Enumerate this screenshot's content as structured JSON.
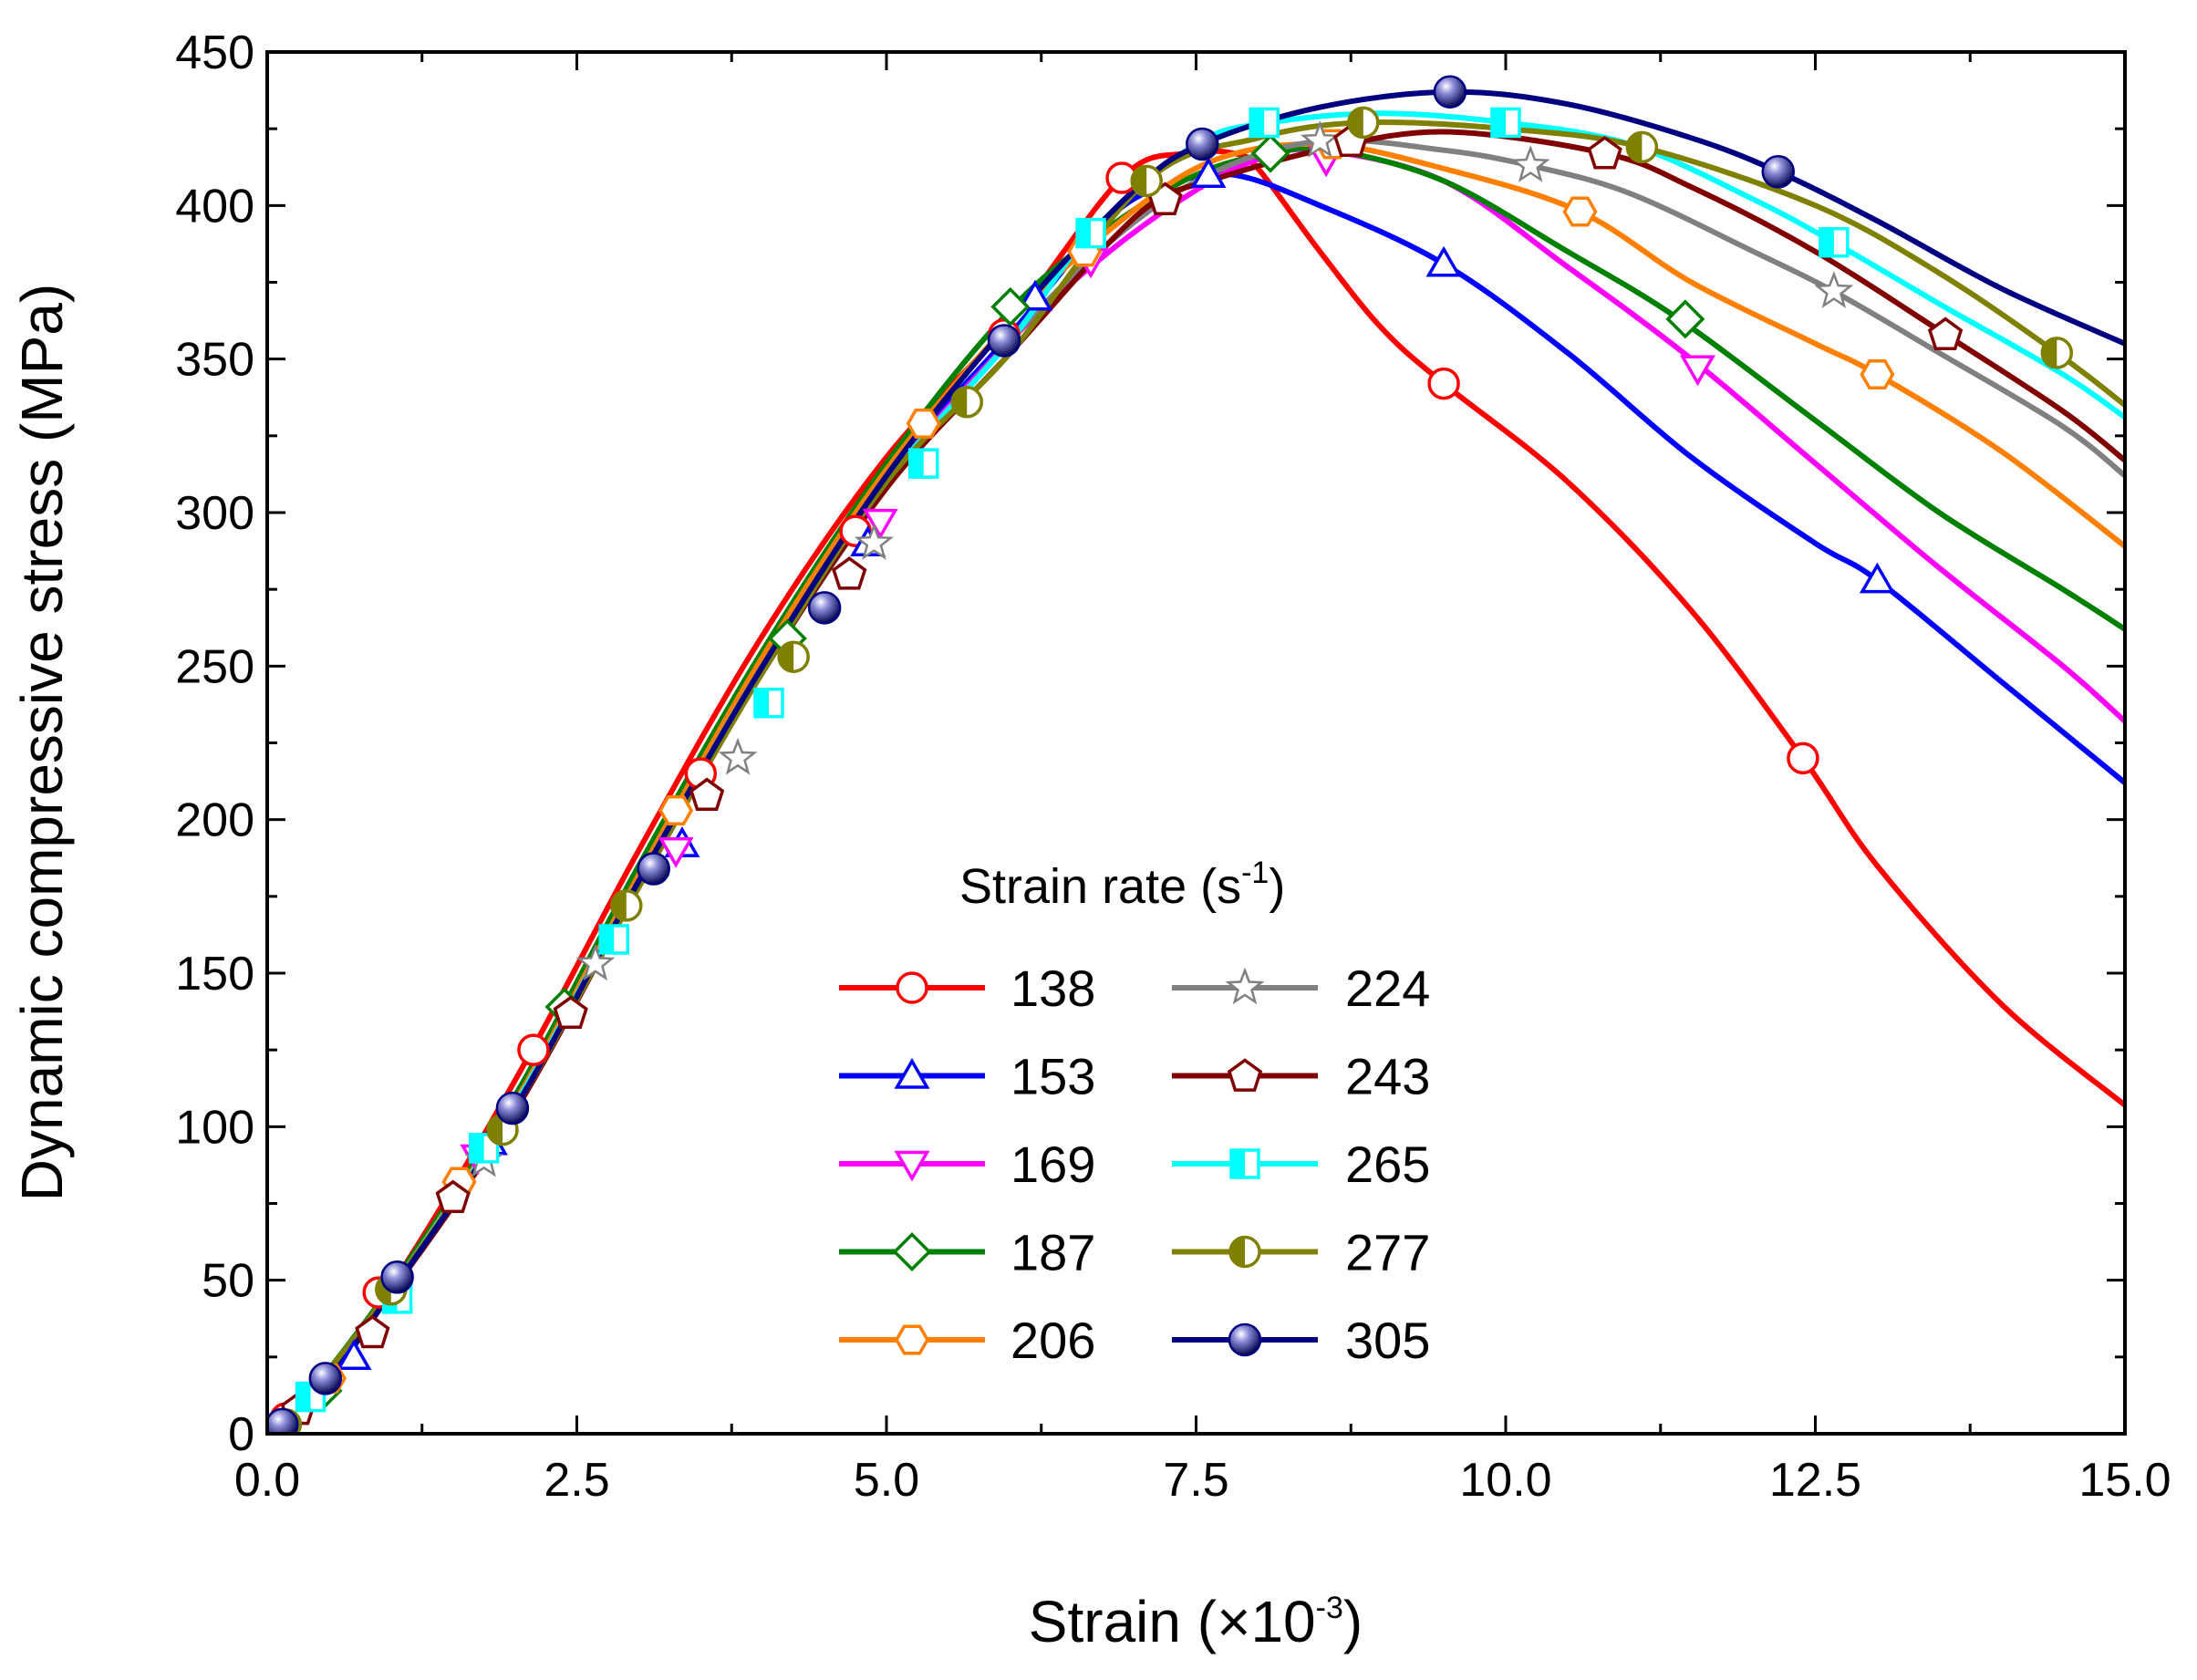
{
  "chart_data": {
    "type": "line",
    "title": "",
    "xlabel": "Strain (×10⁻³)",
    "xlabel_parts": {
      "main": "Strain (×10",
      "sup": "-3",
      "close": ")"
    },
    "ylabel": "Dynamic compressive stress (MPa)",
    "xlim": [
      0,
      15
    ],
    "ylim": [
      0,
      450
    ],
    "xticks": [
      0,
      2.5,
      5,
      7.5,
      10,
      12.5,
      15
    ],
    "xtick_labels": [
      "0.0",
      "2.5",
      "5.0",
      "7.5",
      "10.0",
      "12.5",
      "15.0"
    ],
    "yticks": [
      0,
      50,
      100,
      150,
      200,
      250,
      300,
      350,
      400,
      450
    ],
    "ytick_labels": [
      "0",
      "50",
      "100",
      "150",
      "200",
      "250",
      "300",
      "350",
      "400",
      "450"
    ],
    "grid": false,
    "legend": {
      "position": "center-bottom",
      "columns": 2,
      "title_main": "Strain rate (s",
      "title_sup": "-1",
      "title_close": ")"
    },
    "series": [
      {
        "name": "138",
        "color": "#ff0000",
        "marker": "circle",
        "fill": "open",
        "x": [
          0.15,
          1.0,
          2.0,
          3.0,
          4.0,
          5.0,
          6.0,
          6.9,
          7.4,
          7.8,
          8.0,
          8.5,
          9.0,
          9.5,
          10.5,
          11.5,
          12.4,
          13.0,
          14.0,
          15.0
        ],
        "y": [
          3,
          48,
          115,
          190,
          260,
          318,
          362,
          409,
          417,
          417,
          412,
          385,
          360,
          342,
          310,
          268,
          220,
          185,
          140,
          107
        ],
        "markers_x": [
          0.15,
          0.9,
          2.15,
          3.5,
          4.75,
          5.95,
          6.9,
          9.5,
          12.4
        ],
        "markers_y": [
          5,
          46,
          125,
          215,
          294,
          358,
          409,
          342,
          220
        ]
      },
      {
        "name": "153",
        "color": "#0000ff",
        "marker": "triangle-up",
        "fill": "open",
        "x": [
          0.15,
          1.0,
          2.0,
          3.0,
          4.0,
          5.0,
          6.0,
          6.8,
          7.3,
          7.8,
          8.5,
          9.5,
          10.5,
          11.5,
          12.5,
          13.0,
          14.0,
          15.0
        ],
        "y": [
          3,
          47,
          108,
          180,
          250,
          312,
          358,
          396,
          407,
          410,
          400,
          381,
          352,
          318,
          290,
          278,
          245,
          212
        ],
        "markers_x": [
          0.7,
          1.8,
          3.35,
          4.85,
          6.2,
          7.6,
          9.5,
          13.0
        ],
        "markers_y": [
          25,
          95,
          192,
          290,
          370,
          410,
          381,
          278
        ]
      },
      {
        "name": "169",
        "color": "#ff00ff",
        "marker": "triangle-down",
        "fill": "open",
        "x": [
          0.15,
          1.0,
          2.0,
          3.0,
          4.0,
          5.0,
          6.0,
          6.8,
          7.5,
          8.0,
          8.5,
          9.5,
          10.5,
          11.5,
          12.5,
          13.5,
          14.5,
          15.0
        ],
        "y": [
          3,
          47,
          108,
          180,
          250,
          310,
          356,
          385,
          405,
          415,
          418,
          408,
          380,
          350,
          316,
          282,
          250,
          232
        ],
        "markers_x": [
          1.7,
          3.3,
          4.95,
          6.65,
          8.55,
          11.55
        ],
        "markers_y": [
          90,
          190,
          297,
          382,
          415,
          347
        ]
      },
      {
        "name": "187",
        "color": "#008000",
        "marker": "diamond",
        "fill": "open",
        "x": [
          0.15,
          1.0,
          2.0,
          3.0,
          4.0,
          5.0,
          6.0,
          6.8,
          7.5,
          8.1,
          8.6,
          9.5,
          10.5,
          11.4,
          12.5,
          13.5,
          14.5,
          15.0
        ],
        "y": [
          3,
          48,
          110,
          185,
          255,
          316,
          366,
          393,
          410,
          417,
          418,
          408,
          385,
          363,
          330,
          300,
          275,
          262
        ],
        "markers_x": [
          0.45,
          2.4,
          4.2,
          6.0,
          8.1,
          11.45
        ],
        "markers_y": [
          14,
          139,
          259,
          367,
          417,
          363
        ]
      },
      {
        "name": "206",
        "color": "#ff8000",
        "marker": "hexagon",
        "fill": "open",
        "x": [
          0.15,
          1.0,
          2.0,
          3.0,
          4.0,
          5.0,
          6.0,
          6.8,
          7.6,
          8.5,
          9.5,
          10.6,
          11.5,
          12.5,
          13.0,
          14.0,
          15.0
        ],
        "y": [
          3,
          47,
          108,
          182,
          253,
          314,
          362,
          392,
          414,
          420,
          412,
          398,
          375,
          355,
          345,
          320,
          289
        ],
        "markers_x": [
          0.5,
          1.55,
          3.3,
          5.3,
          6.6,
          8.6,
          10.6,
          13.0
        ],
        "markers_y": [
          18,
          82,
          203,
          329,
          385,
          420,
          398,
          345
        ]
      },
      {
        "name": "224",
        "color": "#808080",
        "marker": "star",
        "fill": "open",
        "x": [
          0.15,
          1.0,
          2.0,
          3.0,
          4.0,
          5.0,
          6.0,
          6.8,
          7.6,
          8.5,
          9.5,
          10.2,
          11.0,
          12.0,
          12.65,
          13.5,
          14.5,
          15.0
        ],
        "y": [
          3,
          46,
          105,
          178,
          248,
          308,
          356,
          388,
          410,
          421,
          418,
          413,
          404,
          385,
          372,
          352,
          328,
          312
        ],
        "markers_x": [
          1.75,
          2.65,
          3.8,
          4.9,
          8.5,
          10.2,
          12.65
        ],
        "markers_y": [
          89,
          153,
          220,
          290,
          421,
          413,
          372
        ]
      },
      {
        "name": "243",
        "color": "#800000",
        "marker": "pentagon",
        "fill": "open",
        "x": [
          0.15,
          1.0,
          2.0,
          3.0,
          4.0,
          5.0,
          6.0,
          6.8,
          7.2,
          7.6,
          8.5,
          9.5,
          10.8,
          11.5,
          12.5,
          13.55,
          14.5,
          15.0
        ],
        "y": [
          3,
          46,
          105,
          178,
          248,
          308,
          352,
          388,
          402,
          408,
          418,
          424,
          417,
          406,
          385,
          358,
          333,
          317
        ],
        "markers_x": [
          0.25,
          0.85,
          1.5,
          2.45,
          3.55,
          4.7,
          7.25,
          8.75,
          10.8,
          13.55
        ],
        "markers_y": [
          8,
          33,
          77,
          137,
          208,
          280,
          402,
          421,
          417,
          358
        ]
      },
      {
        "name": "265",
        "color": "#00ffff",
        "marker": "square-half",
        "fill": "half",
        "x": [
          0.15,
          1.0,
          2.0,
          3.0,
          4.0,
          5.0,
          6.0,
          6.65,
          7.5,
          8.1,
          9.0,
          10.0,
          11.0,
          12.0,
          12.65,
          13.5,
          14.5,
          15.0
        ],
        "y": [
          3,
          47,
          107,
          180,
          250,
          310,
          356,
          391,
          420,
          427,
          430,
          427,
          420,
          402,
          388,
          368,
          345,
          331
        ],
        "markers_x": [
          0.35,
          1.05,
          1.75,
          2.8,
          4.05,
          5.3,
          6.65,
          8.05,
          10.0,
          12.65
        ],
        "markers_y": [
          12,
          44,
          93,
          161,
          238,
          316,
          391,
          427,
          427,
          388
        ]
      },
      {
        "name": "277",
        "color": "#808000",
        "marker": "circle-half",
        "fill": "half",
        "x": [
          0.15,
          1.0,
          2.0,
          3.0,
          4.0,
          5.0,
          6.0,
          7.1,
          8.0,
          8.85,
          10.0,
          11.1,
          12.5,
          13.5,
          14.45,
          15.0
        ],
        "y": [
          3,
          47,
          106,
          178,
          248,
          310,
          352,
          408,
          422,
          427,
          425,
          419,
          400,
          378,
          352,
          335
        ],
        "markers_x": [
          0.15,
          1.0,
          1.9,
          2.9,
          4.25,
          5.65,
          7.1,
          8.85,
          11.1,
          14.45
        ],
        "markers_y": [
          3,
          47,
          99,
          172,
          253,
          336,
          408,
          427,
          419,
          352
        ]
      },
      {
        "name": "305",
        "color": "#000080",
        "marker": "circle-solid",
        "fill": "solid",
        "x": [
          0.12,
          0.5,
          1.0,
          2.0,
          3.0,
          4.0,
          5.0,
          6.0,
          7.0,
          7.55,
          8.5,
          9.55,
          10.5,
          11.5,
          12.2,
          13.0,
          14.0,
          15.0
        ],
        "y": [
          3,
          18,
          46,
          106,
          180,
          250,
          312,
          362,
          405,
          420,
          432,
          437,
          433,
          422,
          411,
          395,
          373,
          355
        ],
        "markers_x": [
          0.12,
          0.47,
          1.05,
          1.98,
          3.12,
          4.5,
          5.95,
          7.55,
          9.55,
          12.2
        ],
        "markers_y": [
          3,
          18,
          51,
          106,
          184,
          269,
          356,
          420,
          437,
          411
        ]
      }
    ]
  }
}
